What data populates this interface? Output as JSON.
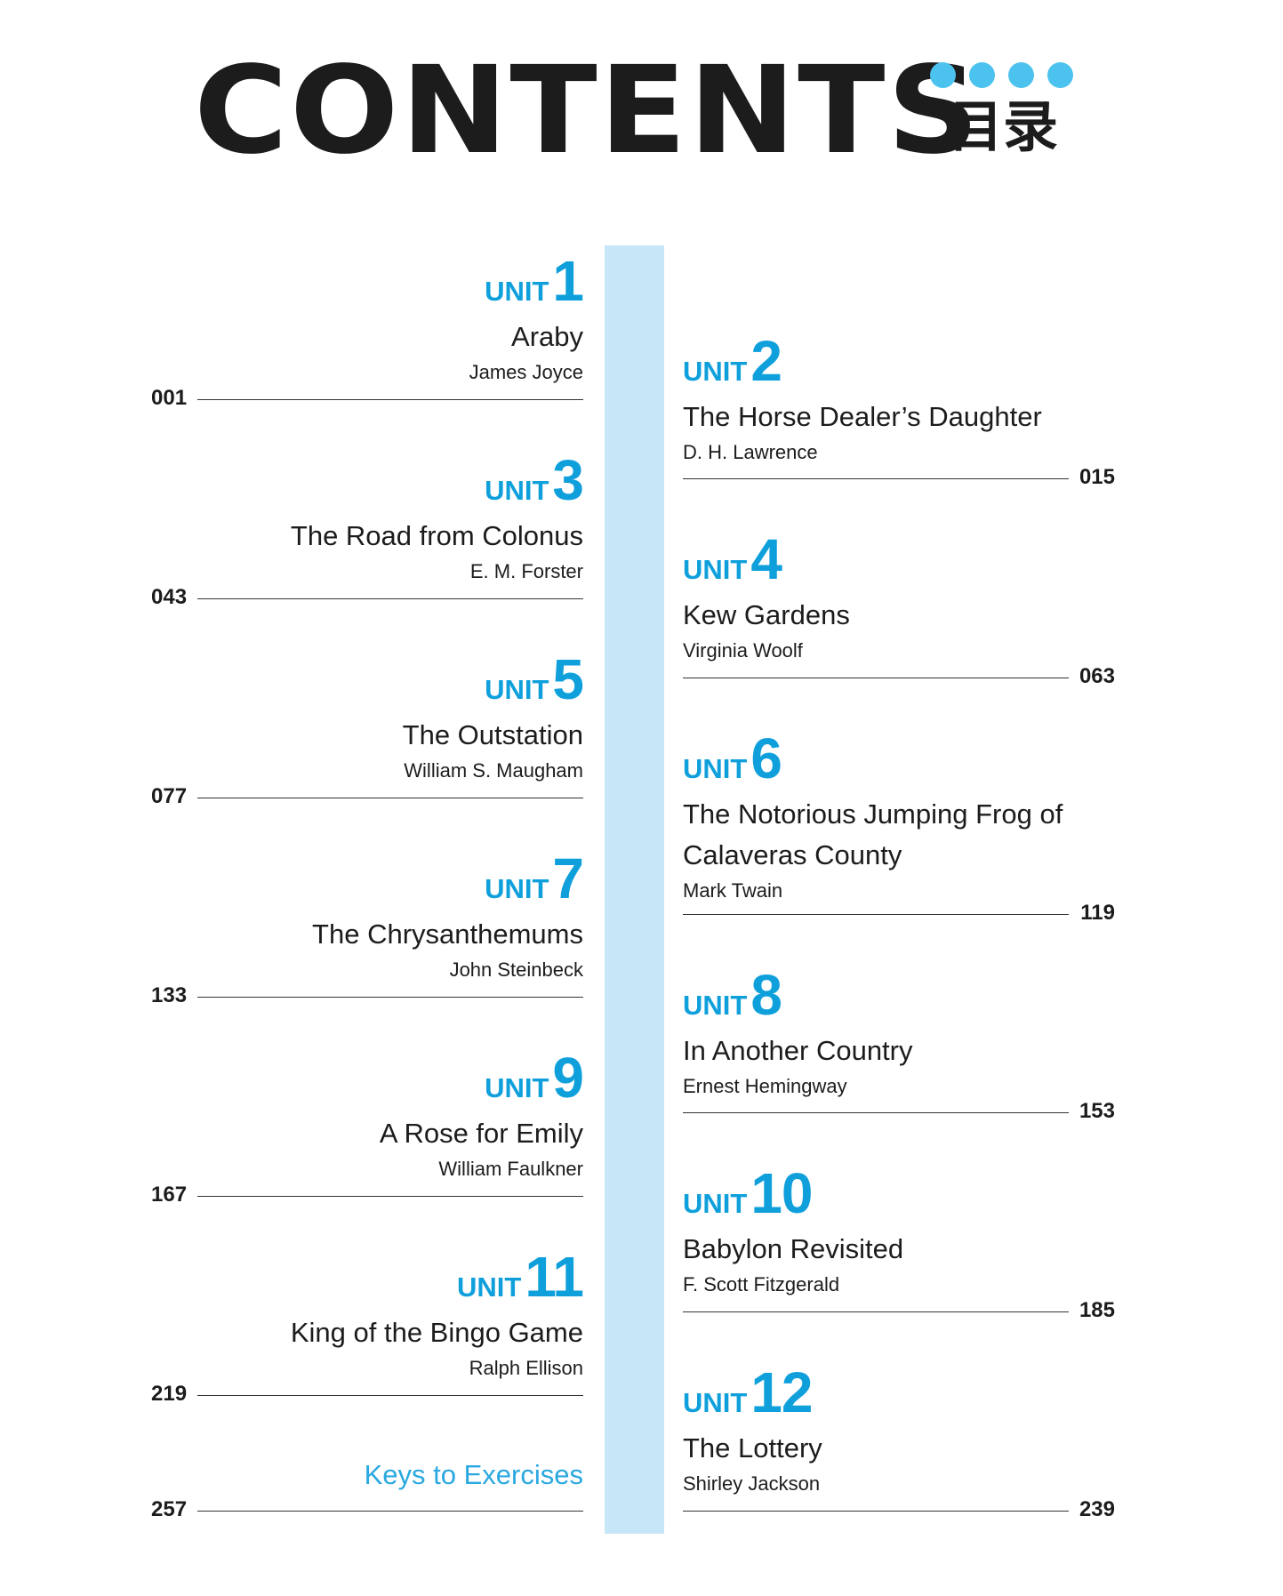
{
  "header": {
    "title": "CONTENTS",
    "subtitle": "目录",
    "accent": "#4cc3ee"
  },
  "unit_word": "UNIT",
  "units": [
    {
      "num": "1",
      "title": "Araby",
      "author": "James Joyce",
      "page": "001"
    },
    {
      "num": "2",
      "title": "The Horse Dealer’s Daughter",
      "author": "D.  H.  Lawrence",
      "page": "015"
    },
    {
      "num": "3",
      "title": "The Road from Colonus",
      "author": "E. M.  Forster",
      "page": "043"
    },
    {
      "num": "4",
      "title": "Kew Gardens",
      "author": "Virginia Woolf",
      "page": "063"
    },
    {
      "num": "5",
      "title": "The Outstation",
      "author": "William S.  Maugham",
      "page": "077"
    },
    {
      "num": "6",
      "title": "The Notorious Jumping Frog of Calaveras County",
      "author": "Mark Twain",
      "page": "119"
    },
    {
      "num": "7",
      "title": "The Chrysanthemums",
      "author": "John Steinbeck",
      "page": "133"
    },
    {
      "num": "8",
      "title": "In Another Country",
      "author": "Ernest Hemingway",
      "page": "153"
    },
    {
      "num": "9",
      "title": "A Rose for Emily",
      "author": "William Faulkner",
      "page": "167"
    },
    {
      "num": "10",
      "title": "Babylon Revisited",
      "author": "F.  Scott Fitzgerald",
      "page": "185"
    },
    {
      "num": "11",
      "title": "King of the Bingo Game",
      "author": "Ralph Ellison",
      "page": "219"
    },
    {
      "num": "12",
      "title": "The Lottery",
      "author": "Shirley Jackson",
      "page": "239"
    }
  ],
  "keys": {
    "label": "Keys to Exercises",
    "page": "257"
  }
}
